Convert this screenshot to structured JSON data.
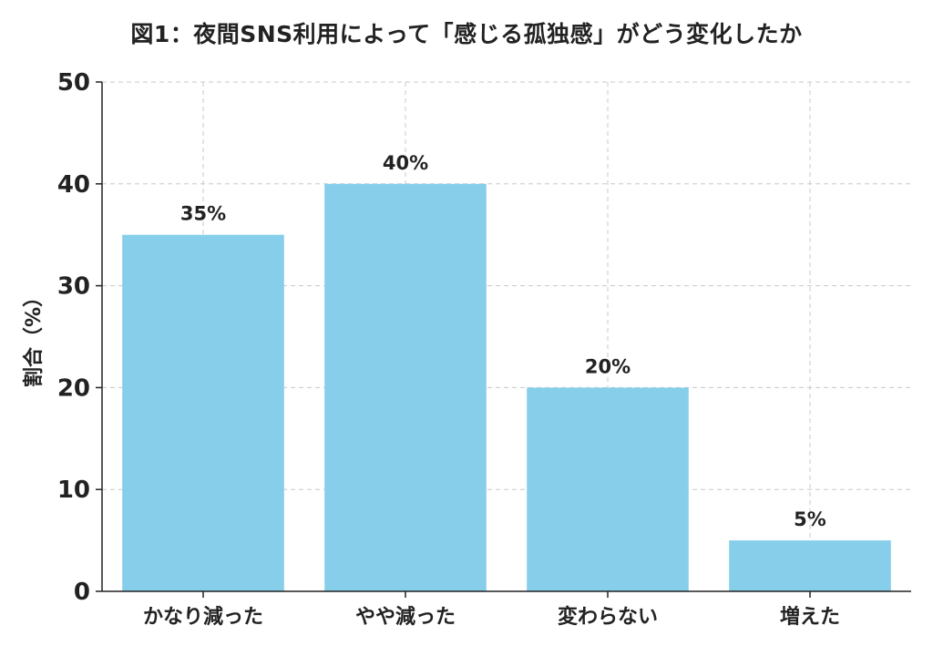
{
  "chart_data": {
    "type": "bar",
    "title": "図1：夜間SNS利用によって「感じる孤独感」がどう変化したか",
    "xlabel": "",
    "ylabel": "割合（%）",
    "categories": [
      "かなり減った",
      "やや減った",
      "変わらない",
      "増えた"
    ],
    "values": [
      35,
      40,
      20,
      5
    ],
    "value_labels": [
      "35%",
      "40%",
      "20%",
      "5%"
    ],
    "ylim": [
      0,
      50
    ],
    "yticks": [
      "0",
      "10",
      "20",
      "30",
      "40",
      "50"
    ],
    "grid": true,
    "legend": "none",
    "colors": {
      "bar": "#87CEEB",
      "grid": "#c8c8c8",
      "axis": "#222222",
      "text": "#222222"
    }
  }
}
